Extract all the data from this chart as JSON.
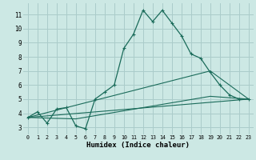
{
  "title": "",
  "xlabel": "Humidex (Indice chaleur)",
  "ylabel": "",
  "background_color": "#cce8e4",
  "grid_color": "#aaccca",
  "line_color": "#1a6b5a",
  "xlim": [
    -0.5,
    23.5
  ],
  "ylim": [
    2.5,
    11.8
  ],
  "yticks": [
    3,
    4,
    5,
    6,
    7,
    8,
    9,
    10,
    11
  ],
  "xticks": [
    0,
    1,
    2,
    3,
    4,
    5,
    6,
    7,
    8,
    9,
    10,
    11,
    12,
    13,
    14,
    15,
    16,
    17,
    18,
    19,
    20,
    21,
    22,
    23
  ],
  "series": [
    [
      0,
      3.7
    ],
    [
      1,
      4.1
    ],
    [
      2,
      3.3
    ],
    [
      3,
      4.3
    ],
    [
      4,
      4.4
    ],
    [
      5,
      3.1
    ],
    [
      6,
      2.9
    ],
    [
      7,
      5.0
    ],
    [
      8,
      5.5
    ],
    [
      9,
      6.0
    ],
    [
      10,
      8.6
    ],
    [
      11,
      9.6
    ],
    [
      12,
      11.3
    ],
    [
      13,
      10.5
    ],
    [
      14,
      11.3
    ],
    [
      15,
      10.4
    ],
    [
      16,
      9.5
    ],
    [
      17,
      8.2
    ],
    [
      18,
      7.9
    ],
    [
      19,
      6.9
    ],
    [
      20,
      6.0
    ],
    [
      21,
      5.3
    ],
    [
      22,
      5.0
    ],
    [
      23,
      5.0
    ]
  ],
  "line2": [
    [
      0,
      3.7
    ],
    [
      23,
      5.0
    ]
  ],
  "line3": [
    [
      0,
      3.7
    ],
    [
      19,
      7.0
    ],
    [
      23,
      5.0
    ]
  ],
  "line4": [
    [
      0,
      3.7
    ],
    [
      5,
      3.6
    ],
    [
      19,
      5.2
    ],
    [
      23,
      5.0
    ]
  ]
}
